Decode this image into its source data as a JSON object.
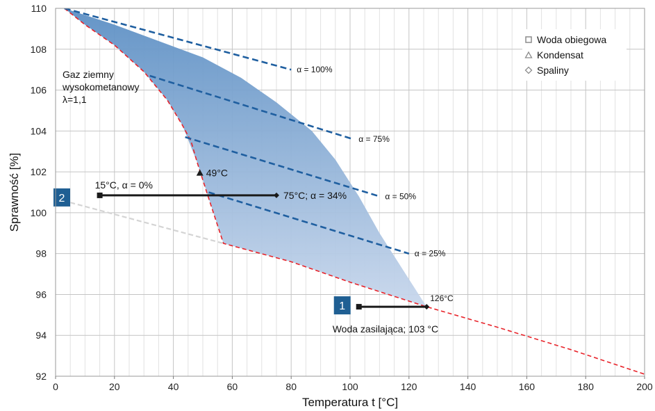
{
  "chart_data": {
    "type": "line",
    "xlabel": "Temperatura t [°C]",
    "ylabel": "Sprawność [%]",
    "xlim": [
      0,
      200
    ],
    "ylim": [
      92,
      110
    ],
    "x_ticks": [
      "0",
      "20",
      "40",
      "60",
      "80",
      "100",
      "120",
      "140",
      "160",
      "180",
      "200"
    ],
    "y_ticks": [
      "92",
      "94",
      "96",
      "98",
      "100",
      "102",
      "104",
      "106",
      "108",
      "110"
    ],
    "grid": true,
    "legend_position": "top-right",
    "legend": [
      {
        "label": "Woda obiegowa",
        "marker": "square"
      },
      {
        "label": "Kondensat",
        "marker": "triangle"
      },
      {
        "label": "Spaliny",
        "marker": "diamond"
      }
    ],
    "fuel_label_lines": [
      "Gaz ziemny",
      "wysokometanowy",
      "λ=1,1"
    ],
    "series": [
      {
        "style": "red-dashed",
        "x": [
          3,
          10,
          20,
          30,
          38,
          43,
          46,
          48,
          50,
          52,
          57,
          80,
          100,
          126,
          150,
          175,
          200
        ],
        "y": [
          110,
          109.2,
          108.2,
          106.9,
          105.5,
          104.3,
          103.5,
          102.5,
          101.6,
          100.7,
          98.5,
          97.6,
          96.6,
          95.4,
          94.4,
          93.3,
          92.1
        ]
      },
      {
        "style": "grey-dashed",
        "x": [
          5,
          57
        ],
        "y": [
          100.5,
          98.5
        ]
      },
      {
        "style": "blue-dashed",
        "label": "α = 100%",
        "x": [
          3,
          80
        ],
        "y": [
          110,
          107
        ]
      },
      {
        "style": "blue-dashed",
        "label": "α = 75%",
        "x": [
          32,
          101
        ],
        "y": [
          106.7,
          103.6
        ]
      },
      {
        "style": "blue-dashed",
        "label": "α = 50%",
        "x": [
          44,
          110
        ],
        "y": [
          103.7,
          100.8
        ]
      },
      {
        "style": "blue-dashed",
        "label": "α = 25%",
        "x": [
          52,
          120
        ],
        "y": [
          101,
          98
        ]
      }
    ],
    "shaded_region": {
      "x": [
        3,
        20,
        35,
        50,
        63,
        75,
        87,
        95,
        103,
        110,
        118,
        126,
        100,
        80,
        57,
        52,
        48,
        43,
        38,
        30,
        20,
        10
      ],
      "y": [
        110,
        109.2,
        108.4,
        107.6,
        106.6,
        105.4,
        104,
        102.6,
        100.8,
        99,
        97.2,
        95.4,
        96.6,
        97.6,
        98.5,
        100.7,
        102.5,
        104.3,
        105.5,
        106.9,
        108.2,
        109.2
      ]
    },
    "ranges": [
      {
        "badge": "2",
        "label": "15°C, α = 0%",
        "end_label": "75°C; α = 34%",
        "x_start": 15,
        "x_end": 75,
        "y": 100.85
      },
      {
        "badge": "1",
        "label": "Woda zasilająca; 103 °C",
        "end_label": "126°C",
        "x_start": 103,
        "x_end": 126,
        "y": 95.4
      }
    ],
    "point_annotations": [
      {
        "marker": "triangle",
        "label": "49°C",
        "x": 49,
        "y": 101.95
      }
    ]
  },
  "colors": {
    "red_line": "#e8232a",
    "blue_line": "#1f5fa0",
    "grey_line": "#d4d4d4",
    "badge": "#1f5f93",
    "fill_top": "#5c8fc4",
    "fill_bottom": "#c8d7ec"
  }
}
